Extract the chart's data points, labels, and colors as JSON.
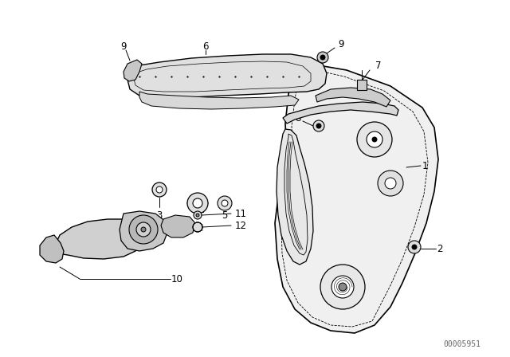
{
  "bg_color": "#ffffff",
  "fig_width": 6.4,
  "fig_height": 4.48,
  "dpi": 100,
  "watermark": "00005951",
  "watermark_color": "#666666",
  "watermark_fontsize": 7,
  "label_fontsize": 8.5,
  "label_color": "#000000"
}
